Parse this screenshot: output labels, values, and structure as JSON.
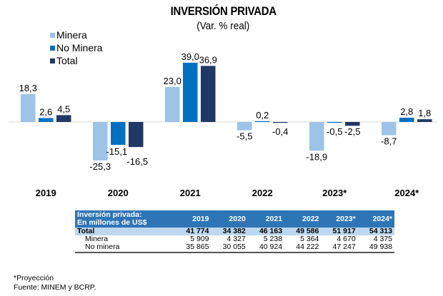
{
  "chart_data": {
    "type": "bar",
    "title": "INVERSIÓN PRIVADA",
    "subtitle": "(Var. % real)",
    "xlabel": "",
    "ylabel": "",
    "categories": [
      "2019",
      "2020",
      "2021",
      "2022",
      "2023*",
      "2024*"
    ],
    "series": [
      {
        "name": "Minera",
        "color": "#9dc3e6",
        "values": [
          18.3,
          -25.3,
          23.0,
          -5.5,
          -18.9,
          -8.7
        ],
        "labels": [
          "18,3",
          "-25,3",
          "23,0",
          "-5,5",
          "-18,9",
          "-8,7"
        ]
      },
      {
        "name": "No Minera",
        "color": "#0070c0",
        "values": [
          2.6,
          -15.1,
          39.0,
          0.2,
          -0.5,
          2.8
        ],
        "labels": [
          "2,6",
          "-15,1",
          "39,0",
          "0,2",
          "-0,5",
          "2,8"
        ]
      },
      {
        "name": "Total",
        "color": "#203864",
        "values": [
          4.5,
          -16.5,
          36.9,
          -0.4,
          -2.5,
          1.8
        ],
        "labels": [
          "4,5",
          "-16,5",
          "36,9",
          "-0,4",
          "-2,5",
          "1,8"
        ]
      }
    ],
    "ylim": [
      -30,
      45
    ],
    "grid": false,
    "legend": "top-left"
  },
  "table": {
    "header_line1": "Inversión privada:",
    "header_line2": "En millones de US$",
    "years": [
      "2019",
      "2020",
      "2021",
      "2022",
      "2023*",
      "2024*"
    ],
    "rows": [
      {
        "label": "Total",
        "values": [
          "41 774",
          "34 382",
          "46 163",
          "49 586",
          "51 917",
          "54 313"
        ]
      },
      {
        "label": "Minera",
        "values": [
          "5 909",
          "4 327",
          "5 238",
          "5 364",
          "4 670",
          "4 375"
        ]
      },
      {
        "label": "No minera",
        "values": [
          "35 865",
          "30 055",
          "40 924",
          "44 222",
          "47 247",
          "49 938"
        ]
      }
    ]
  },
  "footnotes": {
    "projection": "*Proyección",
    "source": "Fuente: MINEM y BCRP."
  }
}
